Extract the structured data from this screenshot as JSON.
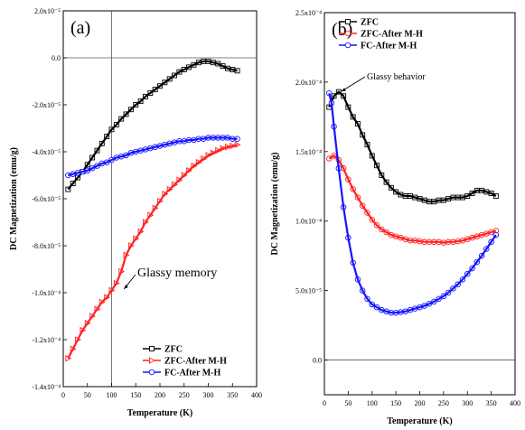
{
  "colors": {
    "ZFC": "#000000",
    "ZFC-After M-H": "#ff2222",
    "FC-After M-H": "#1414ff"
  },
  "chart_data": [
    {
      "type": "line",
      "panel_label": "(a)",
      "xlabel": "Temperature (K)",
      "ylabel": "DC Magnetization (emu/g)",
      "xlim": [
        0,
        400
      ],
      "ylim": [
        -0.00014,
        2e-05
      ],
      "xticks": [
        0,
        50,
        100,
        150,
        200,
        250,
        300,
        350,
        400
      ],
      "xtick_labels": [
        "0",
        "50",
        "100",
        "150",
        "200",
        "250",
        "300",
        "350",
        "400"
      ],
      "yticks": [
        -0.00014,
        -0.00012,
        -0.0001,
        -8e-05,
        -6e-05,
        -4e-05,
        -2e-05,
        0,
        2e-05
      ],
      "ytick_labels": [
        "-1.4x10⁻⁴",
        "-1.2x10⁻⁴",
        "-1.0x10⁻⁴",
        "-8.0x10⁻⁵",
        "-6.0x10⁻⁵",
        "-4.0x10⁻⁵",
        "-2.0x10⁻⁵",
        "0.0",
        "2.0x10⁻⁵"
      ],
      "reference_lines": [
        {
          "orientation": "vertical",
          "x": 100
        },
        {
          "orientation": "horizontal",
          "y": 0
        }
      ],
      "legend": {
        "placement": "bottom-right",
        "entries": [
          "ZFC",
          "ZFC-After M-H",
          "FC-After M-H"
        ]
      },
      "annotation": {
        "text": "Glassy memory",
        "target": [
          122,
          -9.8e-05
        ]
      },
      "series": [
        {
          "name": "ZFC",
          "marker": "square",
          "x": [
            10,
            20,
            30,
            40,
            50,
            60,
            70,
            80,
            90,
            100,
            110,
            120,
            130,
            140,
            150,
            160,
            170,
            180,
            190,
            200,
            210,
            220,
            230,
            240,
            250,
            260,
            270,
            280,
            290,
            300,
            310,
            320,
            330,
            340,
            350,
            360
          ],
          "y": [
            -5.6e-05,
            -5.35e-05,
            -5.1e-05,
            -4.85e-05,
            -4.55e-05,
            -4.25e-05,
            -3.95e-05,
            -3.65e-05,
            -3.35e-05,
            -3.05e-05,
            -2.85e-05,
            -2.6e-05,
            -2.4e-05,
            -2.2e-05,
            -2e-05,
            -1.85e-05,
            -1.65e-05,
            -1.5e-05,
            -1.35e-05,
            -1.2e-05,
            -1.05e-05,
            -9e-06,
            -7.5e-06,
            -6e-06,
            -5e-06,
            -4e-06,
            -3e-06,
            -2e-06,
            -1.5e-06,
            -1.5e-06,
            -2e-06,
            -2.5e-06,
            -3.5e-06,
            -4.5e-06,
            -5e-06,
            -5.5e-06
          ]
        },
        {
          "name": "ZFC-After M-H",
          "marker": "triangle-right",
          "x": [
            10,
            20,
            30,
            40,
            50,
            60,
            70,
            80,
            90,
            100,
            110,
            120,
            130,
            140,
            150,
            160,
            170,
            180,
            190,
            200,
            210,
            220,
            230,
            240,
            250,
            260,
            270,
            280,
            290,
            300,
            310,
            320,
            330,
            340,
            350,
            360
          ],
          "y": [
            -0.000128,
            -0.000124,
            -0.00012,
            -0.000116,
            -0.000113,
            -0.00011,
            -0.000107,
            -0.000104,
            -0.000102,
            -9.9e-05,
            -9.6e-05,
            -9.1e-05,
            -8.4e-05,
            -8e-05,
            -7.7e-05,
            -7.4e-05,
            -7e-05,
            -6.7e-05,
            -6.4e-05,
            -6.1e-05,
            -5.8e-05,
            -5.6e-05,
            -5.4e-05,
            -5.2e-05,
            -5e-05,
            -4.8e-05,
            -4.6e-05,
            -4.45e-05,
            -4.3e-05,
            -4.15e-05,
            -4.05e-05,
            -3.95e-05,
            -3.85e-05,
            -3.8e-05,
            -3.75e-05,
            -3.7e-05
          ]
        },
        {
          "name": "FC-After M-H",
          "marker": "circle",
          "x": [
            10,
            20,
            30,
            40,
            50,
            60,
            70,
            80,
            90,
            100,
            110,
            120,
            130,
            140,
            150,
            160,
            170,
            180,
            190,
            200,
            210,
            220,
            230,
            240,
            250,
            260,
            270,
            280,
            290,
            300,
            310,
            320,
            330,
            340,
            350,
            360
          ],
          "y": [
            -5e-05,
            -4.95e-05,
            -4.9e-05,
            -4.85e-05,
            -4.8e-05,
            -4.7e-05,
            -4.6e-05,
            -4.5e-05,
            -4.45e-05,
            -4.35e-05,
            -4.25e-05,
            -4.2e-05,
            -4.15e-05,
            -4.05e-05,
            -4e-05,
            -3.95e-05,
            -3.9e-05,
            -3.85e-05,
            -3.8e-05,
            -3.75e-05,
            -3.7e-05,
            -3.65e-05,
            -3.6e-05,
            -3.55e-05,
            -3.55e-05,
            -3.5e-05,
            -3.5e-05,
            -3.45e-05,
            -3.45e-05,
            -3.4e-05,
            -3.4e-05,
            -3.4e-05,
            -3.4e-05,
            -3.4e-05,
            -3.45e-05,
            -3.45e-05
          ]
        }
      ]
    },
    {
      "type": "line",
      "panel_label": "(b)",
      "xlabel": "Temperature (K)",
      "ylabel": "DC Magnetization (emu/g)",
      "xlim": [
        0,
        400
      ],
      "ylim": [
        -2.5e-05,
        0.00025
      ],
      "xticks": [
        0,
        50,
        100,
        150,
        200,
        250,
        300,
        350,
        400
      ],
      "xtick_labels": [
        "0",
        "50",
        "100",
        "150",
        "200",
        "250",
        "300",
        "350",
        "400"
      ],
      "yticks": [
        0,
        5e-05,
        0.0001,
        0.00015,
        0.0002,
        0.00025
      ],
      "ytick_labels": [
        "0.0",
        "5.0x10⁻⁵",
        "1.0x10⁻⁴",
        "1.5x10⁻⁴",
        "2.0x10⁻⁴",
        "2.5x10⁻⁴"
      ],
      "reference_lines": [
        {
          "orientation": "horizontal",
          "y": 0
        }
      ],
      "legend": {
        "placement": "top-right",
        "entries": [
          "ZFC",
          "ZFC-After M-H",
          "FC-After M-H"
        ]
      },
      "annotation": {
        "text": "Glassy behavior",
        "target": [
          32,
          0.000194
        ]
      },
      "series": [
        {
          "name": "ZFC",
          "marker": "square",
          "x": [
            10,
            20,
            30,
            40,
            50,
            60,
            70,
            80,
            90,
            100,
            110,
            120,
            130,
            140,
            150,
            160,
            170,
            180,
            190,
            200,
            210,
            220,
            230,
            240,
            250,
            260,
            270,
            280,
            290,
            300,
            310,
            320,
            330,
            340,
            350,
            360
          ],
          "y": [
            0.000182,
            0.00019,
            0.000193,
            0.00019,
            0.000182,
            0.000175,
            0.00017,
            0.000162,
            0.000155,
            0.000147,
            0.00014,
            0.000133,
            0.000128,
            0.000124,
            0.000121,
            0.000119,
            0.000118,
            0.000118,
            0.000117,
            0.000116,
            0.000115,
            0.000114,
            0.000114,
            0.000115,
            0.000115,
            0.000116,
            0.000117,
            0.000117,
            0.000117,
            0.000118,
            0.00012,
            0.000122,
            0.000122,
            0.000121,
            0.00012,
            0.000118
          ]
        },
        {
          "name": "ZFC-After M-H",
          "marker": "circle",
          "x": [
            10,
            20,
            30,
            40,
            50,
            60,
            70,
            80,
            90,
            100,
            110,
            120,
            130,
            140,
            150,
            160,
            170,
            180,
            190,
            200,
            210,
            220,
            230,
            240,
            250,
            260,
            270,
            280,
            290,
            300,
            310,
            320,
            330,
            340,
            350,
            360
          ],
          "y": [
            0.000145,
            0.000147,
            0.000144,
            0.000138,
            0.00013,
            0.000123,
            0.000117,
            0.000111,
            0.000106,
            0.000101,
            9.7e-05,
            9.4e-05,
            9.2e-05,
            9e-05,
            8.9e-05,
            8.8e-05,
            8.7e-05,
            8.6e-05,
            8.6e-05,
            8.55e-05,
            8.5e-05,
            8.5e-05,
            8.5e-05,
            8.5e-05,
            8.45e-05,
            8.5e-05,
            8.5e-05,
            8.55e-05,
            8.6e-05,
            8.7e-05,
            8.8e-05,
            8.9e-05,
            9e-05,
            9.1e-05,
            9.2e-05,
            9.3e-05
          ]
        },
        {
          "name": "FC-After M-H",
          "marker": "circle",
          "x": [
            10,
            15,
            20,
            30,
            40,
            50,
            60,
            70,
            80,
            90,
            100,
            110,
            120,
            130,
            140,
            150,
            160,
            170,
            180,
            190,
            200,
            210,
            220,
            230,
            240,
            250,
            260,
            270,
            280,
            290,
            300,
            310,
            320,
            330,
            340,
            350,
            360
          ],
          "y": [
            0.000192,
            0.000185,
            0.000168,
            0.000138,
            0.00011,
            8.8e-05,
            7e-05,
            5.8e-05,
            5e-05,
            4.4e-05,
            4e-05,
            3.8e-05,
            3.6e-05,
            3.5e-05,
            3.4e-05,
            3.4e-05,
            3.45e-05,
            3.5e-05,
            3.6e-05,
            3.7e-05,
            3.8e-05,
            3.9e-05,
            4.05e-05,
            4.2e-05,
            4.4e-05,
            4.6e-05,
            4.85e-05,
            5.15e-05,
            5.45e-05,
            5.8e-05,
            6.2e-05,
            6.6e-05,
            7.05e-05,
            7.5e-05,
            8e-05,
            8.5e-05,
            9e-05
          ]
        }
      ]
    }
  ]
}
